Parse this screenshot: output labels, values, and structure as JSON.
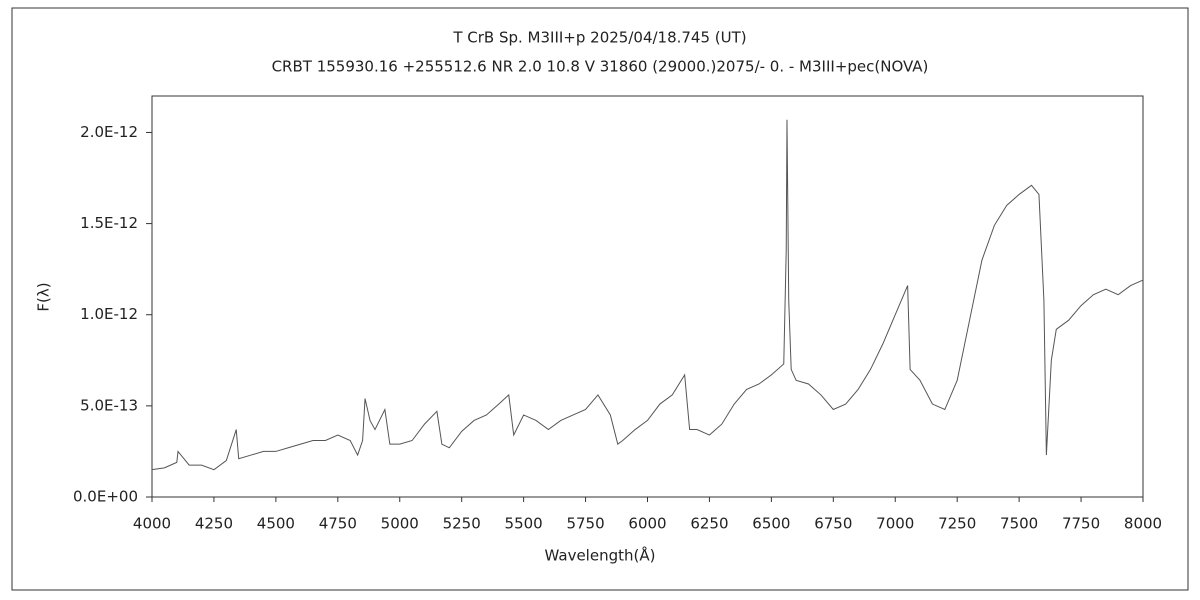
{
  "chart_data": {
    "type": "line",
    "title": "T CrB    Sp. M3III+p    2025/04/18.745 (UT)",
    "subtitle": "CRBT 155930.16 +255512.6 NR 2.0 10.8 V 31860 (29000.)2075/-  0. - M3III+pec(NOVA)",
    "x_label": "Wavelength(Å)",
    "y_label": "F(λ)",
    "xlim": [
      4000,
      8000
    ],
    "xticks": [
      4000,
      4250,
      4500,
      4750,
      5000,
      5250,
      5500,
      5750,
      6000,
      6250,
      6500,
      6750,
      7000,
      7250,
      7500,
      7750,
      8000
    ],
    "ylim": [
      0,
      2.2e-12
    ],
    "yticks": [
      {
        "value": 0,
        "label": "0.0E+00"
      },
      {
        "value": 5e-13,
        "label": "5.0E-13"
      },
      {
        "value": 1e-12,
        "label": "1.0E-12"
      },
      {
        "value": 1.5e-12,
        "label": "1.5E-12"
      },
      {
        "value": 2e-12,
        "label": "2.0E-12"
      }
    ],
    "color": "#555555",
    "x": [
      4000,
      4050,
      4100,
      4105,
      4150,
      4200,
      4250,
      4300,
      4340,
      4350,
      4400,
      4450,
      4500,
      4550,
      4600,
      4650,
      4700,
      4750,
      4800,
      4830,
      4850,
      4860,
      4880,
      4900,
      4940,
      4960,
      5000,
      5050,
      5100,
      5150,
      5170,
      5200,
      5250,
      5300,
      5350,
      5400,
      5440,
      5460,
      5500,
      5550,
      5600,
      5650,
      5700,
      5750,
      5800,
      5850,
      5880,
      5900,
      5950,
      6000,
      6050,
      6100,
      6150,
      6170,
      6200,
      6250,
      6300,
      6350,
      6400,
      6450,
      6500,
      6550,
      6560,
      6563,
      6570,
      6580,
      6600,
      6650,
      6700,
      6750,
      6800,
      6850,
      6900,
      6950,
      7000,
      7050,
      7060,
      7100,
      7150,
      7200,
      7250,
      7300,
      7350,
      7400,
      7450,
      7500,
      7550,
      7580,
      7600,
      7610,
      7630,
      7650,
      7700,
      7750,
      7800,
      7850,
      7900,
      7950,
      8000
    ],
    "values": [
      1.5e-13,
      1.6e-13,
      1.9e-13,
      2.5e-13,
      1.75e-13,
      1.75e-13,
      1.5e-13,
      2e-13,
      3.7e-13,
      2.1e-13,
      2.3e-13,
      2.5e-13,
      2.5e-13,
      2.7e-13,
      2.9e-13,
      3.1e-13,
      3.1e-13,
      3.4e-13,
      3.1e-13,
      2.3e-13,
      3.1e-13,
      5.4e-13,
      4.2e-13,
      3.7e-13,
      4.8e-13,
      2.9e-13,
      2.9e-13,
      3.1e-13,
      4e-13,
      4.7e-13,
      2.9e-13,
      2.7e-13,
      3.6e-13,
      4.2e-13,
      4.5e-13,
      5.1e-13,
      5.6e-13,
      3.4e-13,
      4.5e-13,
      4.2e-13,
      3.7e-13,
      4.2e-13,
      4.5e-13,
      4.8e-13,
      5.6e-13,
      4.5e-13,
      2.9e-13,
      3.1e-13,
      3.7e-13,
      4.2e-13,
      5.1e-13,
      5.6e-13,
      6.7e-13,
      3.7e-13,
      3.7e-13,
      3.4e-13,
      4e-13,
      5.1e-13,
      5.9e-13,
      6.2e-13,
      6.7e-13,
      7.3e-13,
      1.36e-12,
      2.07e-12,
      1.08e-12,
      7e-13,
      6.4e-13,
      6.2e-13,
      5.6e-13,
      4.8e-13,
      5.1e-13,
      5.9e-13,
      7e-13,
      8.4e-13,
      1e-12,
      1.16e-12,
      7e-13,
      6.4e-13,
      5.1e-13,
      4.8e-13,
      6.4e-13,
      9.7e-13,
      1.3e-12,
      1.49e-12,
      1.6e-12,
      1.66e-12,
      1.71e-12,
      1.66e-12,
      1.08e-12,
      2.3e-13,
      7.5e-13,
      9.2e-13,
      9.7e-13,
      1.05e-12,
      1.11e-12,
      1.14e-12,
      1.11e-12,
      1.16e-12,
      1.19e-12
    ]
  }
}
